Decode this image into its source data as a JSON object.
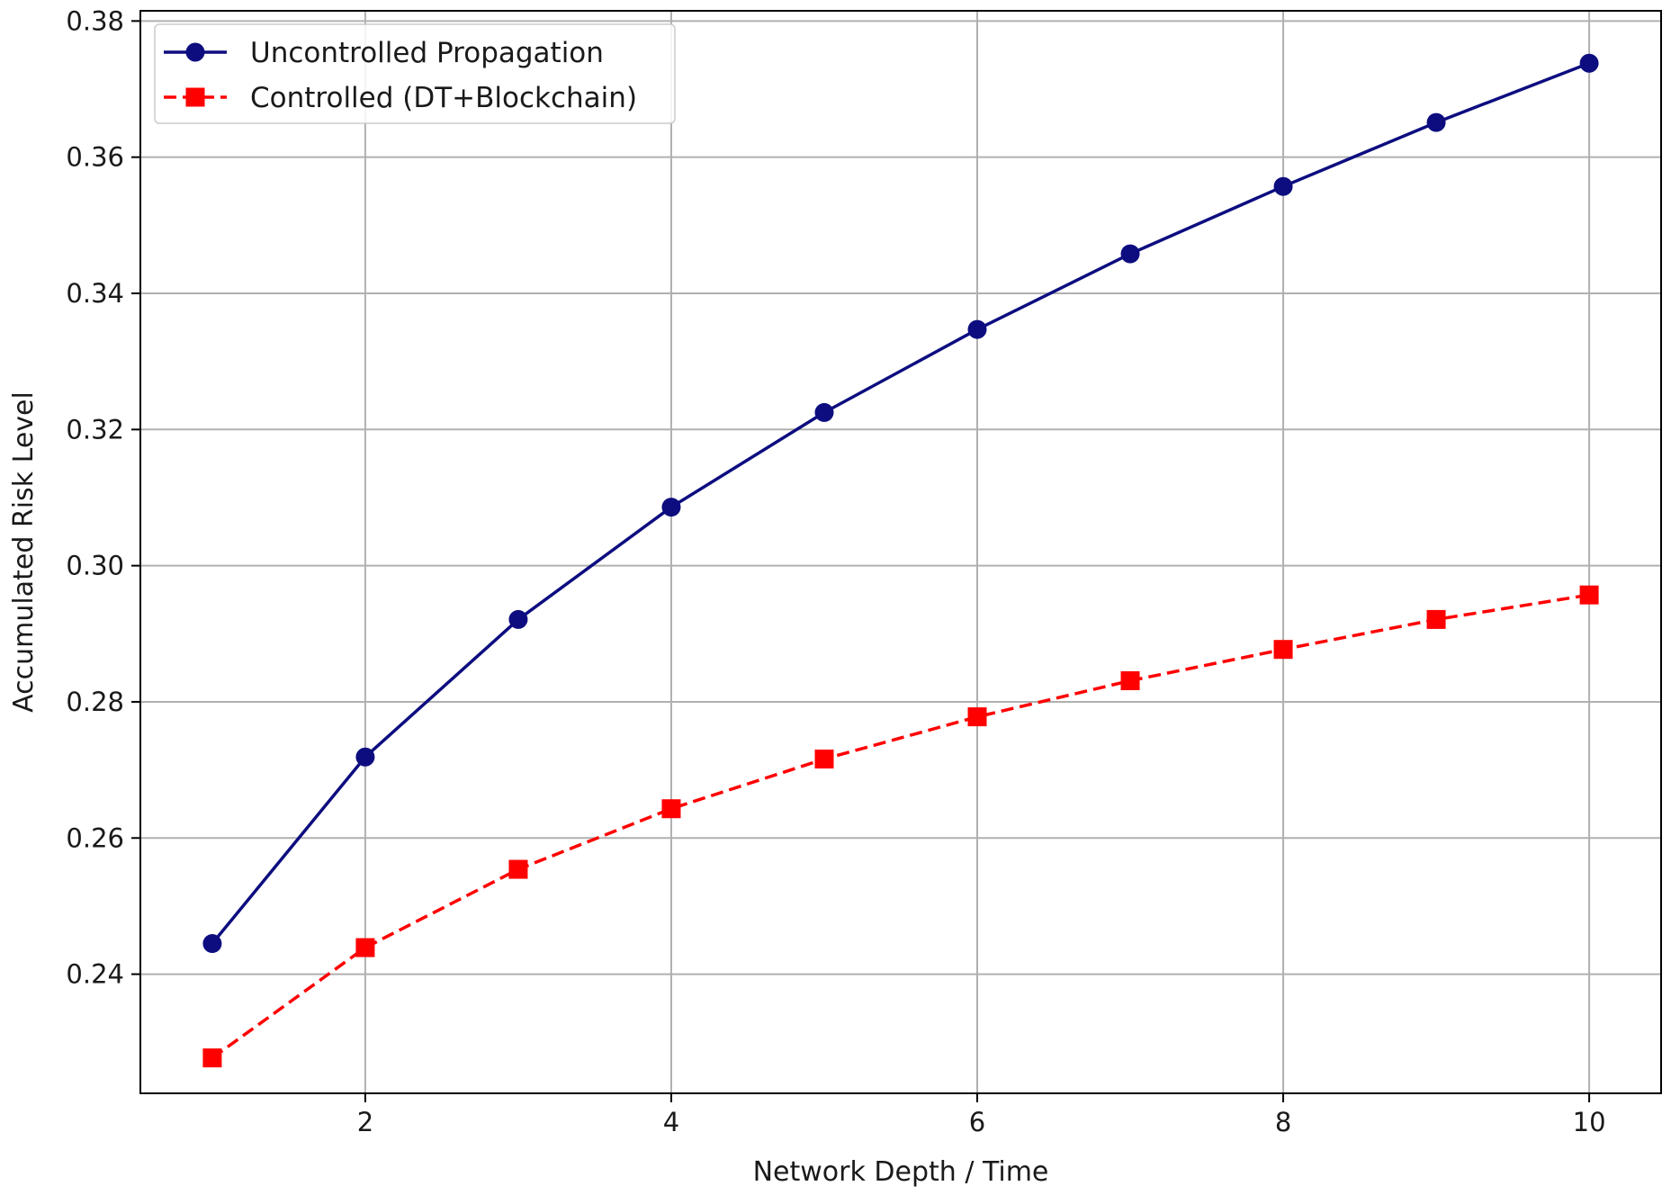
{
  "chart_data": {
    "type": "line",
    "xlabel": "Network Depth / Time",
    "ylabel": "Accumulated Risk Level",
    "xlim": [
      0.53,
      10.47
    ],
    "ylim": [
      0.2225,
      0.3815
    ],
    "x_ticks": [
      2,
      4,
      6,
      8,
      10
    ],
    "x_tick_labels": [
      "2",
      "4",
      "6",
      "8",
      "10"
    ],
    "y_ticks": [
      0.24,
      0.26,
      0.28,
      0.3,
      0.32,
      0.34,
      0.36,
      0.38
    ],
    "y_tick_labels": [
      "0.24",
      "0.26",
      "0.28",
      "0.30",
      "0.32",
      "0.34",
      "0.36",
      "0.38"
    ],
    "grid": true,
    "legend_position": "top-left",
    "x": [
      1,
      2,
      3,
      4,
      5,
      6,
      7,
      8,
      9,
      10
    ],
    "series": [
      {
        "name": "Uncontrolled Propagation",
        "values": [
          0.2445,
          0.2719,
          0.2921,
          0.3086,
          0.3225,
          0.3347,
          0.3458,
          0.3557,
          0.3651,
          0.3738
        ],
        "color": "#0d0d80",
        "marker": "circle",
        "line_style": "solid"
      },
      {
        "name": "Controlled (DT+Blockchain)",
        "values": [
          0.2277,
          0.2439,
          0.2554,
          0.2643,
          0.2716,
          0.2778,
          0.2831,
          0.2877,
          0.2921,
          0.2957
        ],
        "color": "#ff0000",
        "marker": "square",
        "line_style": "dashed"
      }
    ]
  }
}
